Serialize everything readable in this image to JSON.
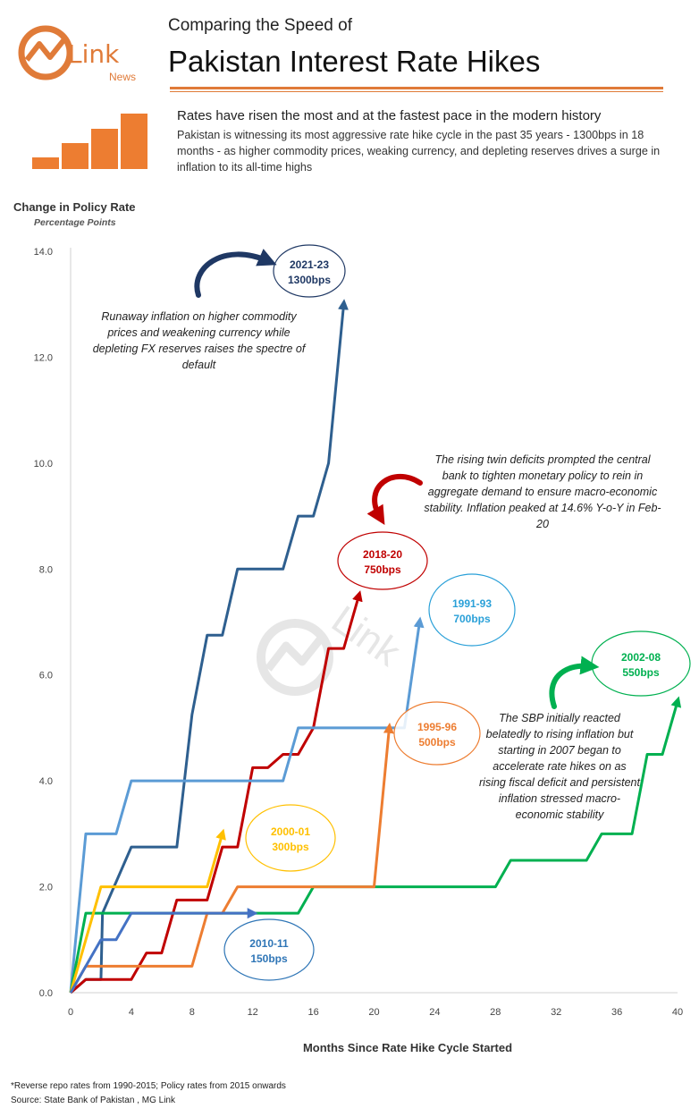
{
  "header": {
    "subtitle": "Comparing the Speed of",
    "title": "Pakistan Interest Rate Hikes",
    "headline": "Rates have risen the most and at the fastest pace in the modern history",
    "description": "Pakistan is witnessing its most aggressive rate hike cycle in the past 35 years - 1300bps in 18 months - as higher commodity prices, weaking currency, and depleting reserves drives a surge in inflation to its all-time highs"
  },
  "logo": {
    "main": "Link",
    "sub": "News"
  },
  "colors": {
    "accent": "#e07b39"
  },
  "annotations": {
    "a2021": "Runaway inflation on higher commodity prices and weakening currency while depleting FX reserves raises the spectre of default",
    "a2018": "The rising twin deficits prompted the central bank to tighten monetary policy to rein in aggregate demand to ensure macro-economic stability. Inflation peaked at 14.6% Y-o-Y in Feb-20",
    "a2002": "The SBP initially reacted belatedly to rising inflation but starting in 2007 began to accelerate rate hikes on as rising fiscal deficit and persistent inflation stressed macro-economic stability"
  },
  "footnotes": {
    "note1": "*Reverse repo rates from 1990-2015; Policy rates from 2015 onwards",
    "note2": "Source: State Bank of Pakistan , MG Link"
  },
  "chart_data": {
    "type": "line",
    "ylabel": "Change in Policy Rate",
    "yunits": "Percentage Points",
    "xlabel": "Months Since Rate Hike Cycle Started",
    "xlim": [
      0,
      40
    ],
    "ylim": [
      0,
      14
    ],
    "xticks": [
      0,
      4,
      8,
      12,
      16,
      20,
      24,
      28,
      32,
      36,
      40
    ],
    "yticks": [
      0,
      2,
      4,
      6,
      8,
      10,
      12,
      14
    ],
    "grid": false,
    "series": [
      {
        "name": "2021-23",
        "label": "1300bps",
        "color": "#2e5f8f",
        "x": [
          0,
          1,
          2,
          2.1,
          4,
          5,
          7,
          8,
          9,
          10,
          11,
          12,
          13,
          14,
          15,
          16,
          17,
          18
        ],
        "y": [
          0,
          0.25,
          0.25,
          1.5,
          2.75,
          2.75,
          2.75,
          5.25,
          6.75,
          6.75,
          8,
          8,
          8,
          8,
          9,
          9,
          10,
          13
        ]
      },
      {
        "name": "2018-20",
        "label": "750bps",
        "color": "#c00000",
        "x": [
          0,
          1,
          2,
          3,
          4,
          5,
          6,
          7,
          8,
          9,
          10,
          11,
          12,
          13,
          14,
          15,
          16,
          17,
          18,
          19
        ],
        "y": [
          0,
          0.25,
          0.25,
          0.25,
          0.25,
          0.75,
          0.75,
          1.75,
          1.75,
          1.75,
          2.75,
          2.75,
          4.25,
          4.25,
          4.5,
          4.5,
          5,
          6.5,
          6.5,
          7.5
        ]
      },
      {
        "name": "1991-93",
        "label": "700bps",
        "color": "#5b9bd5",
        "x": [
          0,
          1,
          2,
          3,
          4,
          5,
          10,
          14,
          15,
          16,
          18,
          20,
          22,
          23
        ],
        "y": [
          0,
          3,
          3,
          3,
          4,
          4,
          4,
          4,
          5,
          5,
          5,
          5,
          5,
          7
        ]
      },
      {
        "name": "2002-08",
        "label": "550bps",
        "color": "#00b050",
        "x": [
          0,
          1,
          3,
          5,
          9,
          14,
          15,
          16,
          18,
          20,
          24,
          28,
          29,
          30,
          34,
          35,
          36,
          37,
          38,
          39,
          40
        ],
        "y": [
          0,
          1.5,
          1.5,
          1.5,
          1.5,
          1.5,
          1.5,
          2,
          2,
          2,
          2,
          2,
          2.5,
          2.5,
          2.5,
          3,
          3,
          3,
          4.5,
          4.5,
          5.5
        ]
      },
      {
        "name": "1995-96",
        "label": "500bps",
        "color": "#ed7d31",
        "x": [
          0,
          1,
          2,
          6,
          8,
          9,
          10,
          11,
          12,
          13,
          14,
          15,
          16,
          18,
          20,
          21
        ],
        "y": [
          0,
          0.5,
          0.5,
          0.5,
          0.5,
          1.5,
          1.5,
          2,
          2,
          2,
          2,
          2,
          2,
          2,
          2,
          5
        ]
      },
      {
        "name": "2000-01",
        "label": "300bps",
        "color": "#ffc000",
        "x": [
          0,
          1,
          2,
          3,
          6,
          8,
          9,
          10
        ],
        "y": [
          0,
          1,
          2,
          2,
          2,
          2,
          2,
          3
        ]
      },
      {
        "name": "2010-11",
        "label": "150bps",
        "color": "#4472c4",
        "x": [
          0,
          1,
          2,
          3,
          4,
          12
        ],
        "y": [
          0,
          0.5,
          1,
          1,
          1.5,
          1.5
        ]
      }
    ]
  }
}
